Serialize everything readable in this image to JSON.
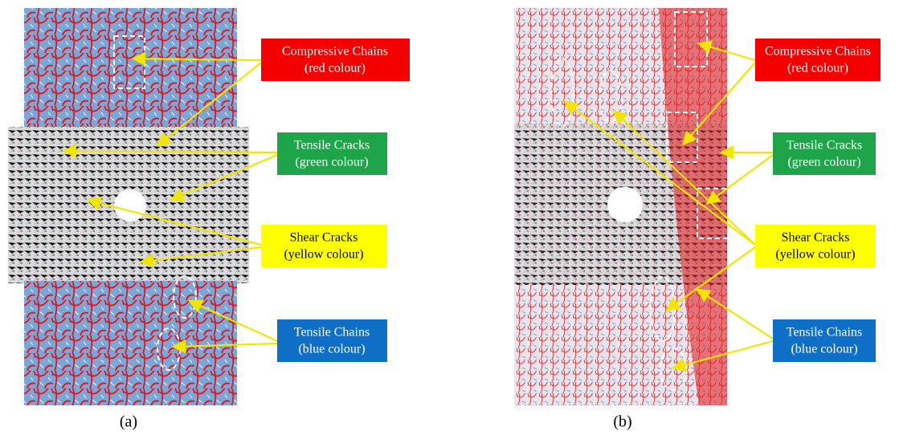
{
  "panels": [
    {
      "caption": "(a)",
      "labels": [
        {
          "title": "Compressive Chains",
          "subtitle": "(red colour)"
        },
        {
          "title": "Tensile Cracks",
          "subtitle": "(green colour)"
        },
        {
          "title": "Shear Cracks",
          "subtitle": "(yellow colour)"
        },
        {
          "title": "Tensile Chains",
          "subtitle": "(blue colour)"
        }
      ]
    },
    {
      "caption": "(b)",
      "labels": [
        {
          "title": "Compressive Chains",
          "subtitle": "(red colour)"
        },
        {
          "title": "Tensile Cracks",
          "subtitle": "(green colour)"
        },
        {
          "title": "Shear Cracks",
          "subtitle": "(yellow colour)"
        },
        {
          "title": "Tensile Chains",
          "subtitle": "(blue colour)"
        }
      ]
    }
  ]
}
